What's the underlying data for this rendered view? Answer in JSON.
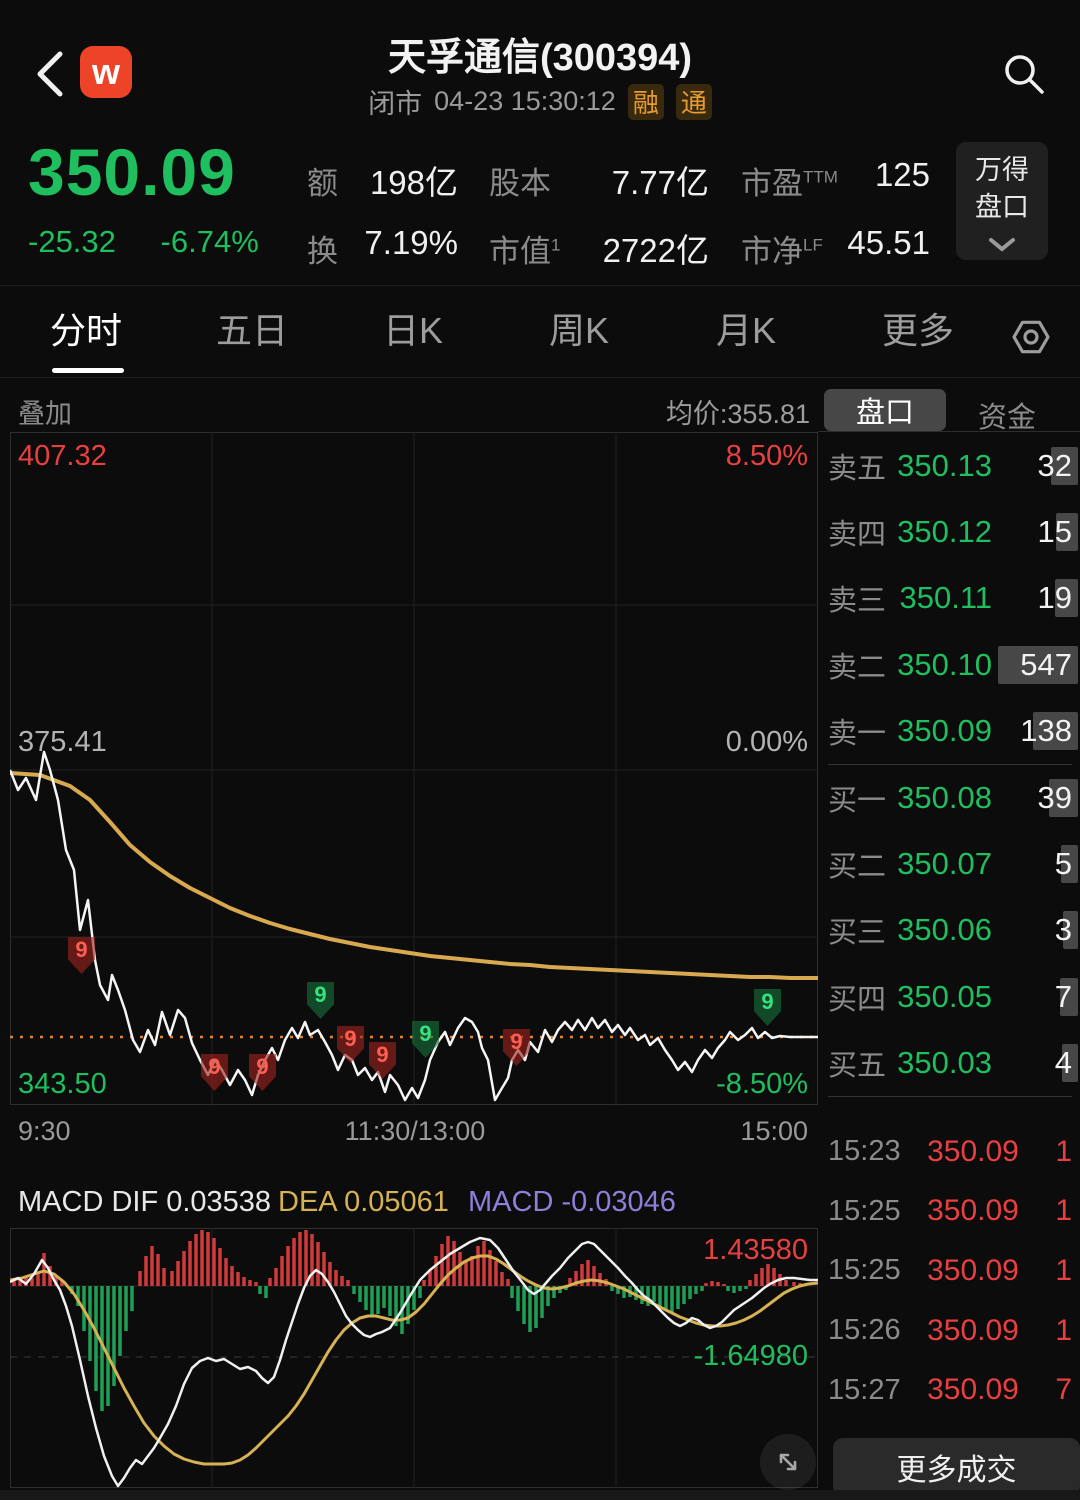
{
  "header": {
    "logo_letter": "w",
    "title": "天孚通信(300394)",
    "market_status": "闭市",
    "datetime": "04-23 15:30:12",
    "badges": [
      "融",
      "通"
    ]
  },
  "quote": {
    "price": "350.09",
    "change": "-25.32",
    "change_pct": "-6.74%",
    "stats": [
      {
        "label": "额",
        "sup": "",
        "value": "198亿"
      },
      {
        "label": "股本",
        "sup": "",
        "value": "7.77亿"
      },
      {
        "label": "市盈",
        "sup": "TTM",
        "value": "125"
      },
      {
        "label": "换",
        "sup": "",
        "value": "7.19%"
      },
      {
        "label": "市值",
        "sup": "1",
        "value": "2722亿"
      },
      {
        "label": "市净",
        "sup": "LF",
        "value": "45.51"
      }
    ],
    "panel_button_line1": "万得",
    "panel_button_line2": "盘口"
  },
  "tabs": [
    "分时",
    "五日",
    "日K",
    "周K",
    "月K",
    "更多"
  ],
  "subbar": {
    "overlay": "叠加",
    "avg": "均价:355.81"
  },
  "minute_chart": {
    "y_left_top": "407.32",
    "y_left_mid": "375.41",
    "y_left_bottom": "343.50",
    "y_right_top": "8.50%",
    "y_right_mid": "0.00%",
    "y_right_bottom": "-8.50%",
    "x_tick_open": "9:30",
    "x_tick_noon": "11:30/13:00",
    "x_tick_close": "15:00",
    "markers": [
      {
        "glyph": "9"
      },
      {
        "glyph": "9"
      },
      {
        "glyph": "9"
      },
      {
        "glyph": "9"
      },
      {
        "glyph": "9"
      },
      {
        "glyph": "9"
      },
      {
        "glyph": "9"
      },
      {
        "glyph": "9"
      },
      {
        "glyph": "9"
      }
    ]
  },
  "order_book": {
    "tab_pankou": "盘口",
    "tab_zijin": "资金",
    "asks": [
      {
        "side": "卖五",
        "price": "350.13",
        "vol": "32"
      },
      {
        "side": "卖四",
        "price": "350.12",
        "vol": "15"
      },
      {
        "side": "卖三",
        "price": "350.11",
        "vol": "19"
      },
      {
        "side": "卖二",
        "price": "350.10",
        "vol": "547"
      },
      {
        "side": "卖一",
        "price": "350.09",
        "vol": "138"
      }
    ],
    "bids": [
      {
        "side": "买一",
        "price": "350.08",
        "vol": "39"
      },
      {
        "side": "买二",
        "price": "350.07",
        "vol": "5"
      },
      {
        "side": "买三",
        "price": "350.06",
        "vol": "3"
      },
      {
        "side": "买四",
        "price": "350.05",
        "vol": "7"
      },
      {
        "side": "买五",
        "price": "350.03",
        "vol": "4"
      }
    ]
  },
  "trades": [
    {
      "time": "15:23",
      "price": "350.09",
      "vol": "1"
    },
    {
      "time": "15:25",
      "price": "350.09",
      "vol": "1"
    },
    {
      "time": "15:25",
      "price": "350.09",
      "vol": "1"
    },
    {
      "time": "15:26",
      "price": "350.09",
      "vol": "1"
    },
    {
      "time": "15:27",
      "price": "350.09",
      "vol": "7"
    }
  ],
  "more_trades": "更多成交",
  "macd": {
    "dif_label": "MACD DIF 0.03538",
    "dea_label": "DEA 0.05061",
    "macd_label": "MACD -0.03046",
    "max": "1.43580",
    "min": "-1.64980"
  },
  "chart_data": [
    {
      "type": "line",
      "title": "分时",
      "x_ticks": [
        "9:30",
        "11:30/13:00",
        "15:00"
      ],
      "y_axis_price": [
        407.32,
        375.41,
        343.5
      ],
      "y_axis_pct": [
        8.5,
        0.0,
        -8.5
      ],
      "series": [
        {
          "name": "价格",
          "start": 375.41,
          "low": 343.9,
          "end": 350.09
        },
        {
          "name": "均价",
          "start": 375.41,
          "end": 355.81
        }
      ],
      "current_price_line": 350.09,
      "legend_position": "none",
      "grid": true
    },
    {
      "type": "bar",
      "title": "MACD",
      "values_labels": {
        "DIF": 0.03538,
        "DEA": 0.05061,
        "MACD": -0.03046
      },
      "ylim": [
        -1.6498,
        1.4358
      ],
      "bar_colors": {
        "positive": "#d03a3a",
        "negative": "#1f9e55"
      }
    }
  ]
}
